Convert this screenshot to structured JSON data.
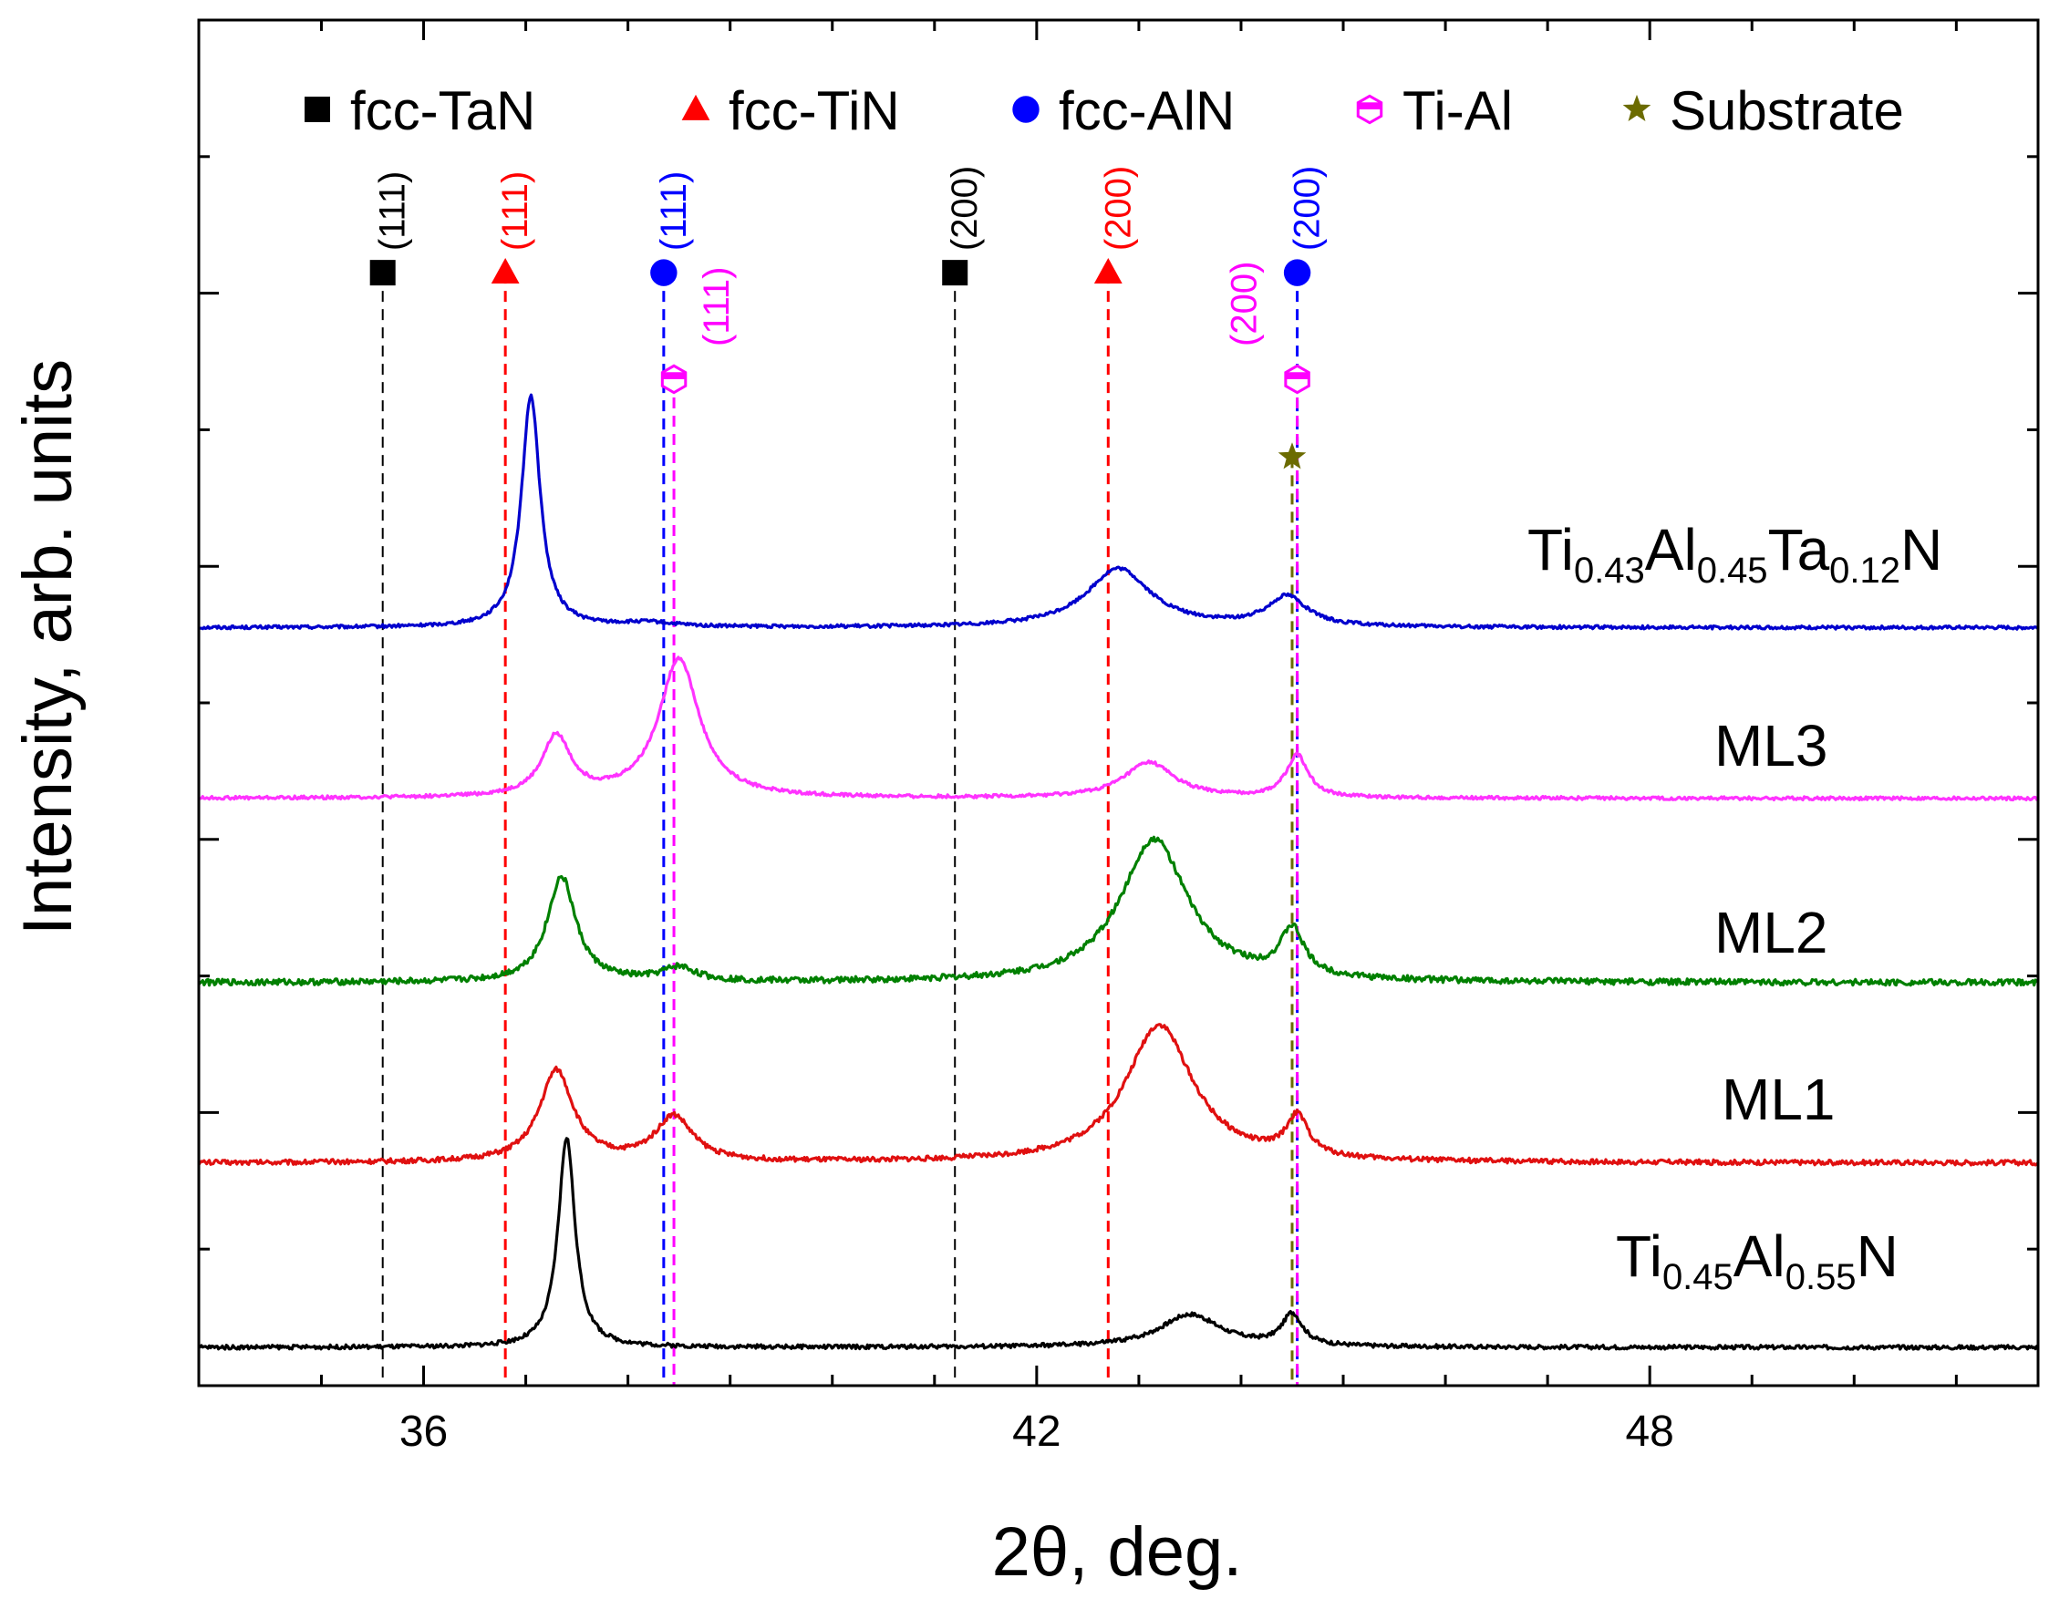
{
  "chart_data": {
    "type": "line",
    "title": "",
    "xlabel": "2θ, deg.",
    "ylabel": "Intensity, arb. units",
    "xlim": [
      33.8,
      51.8
    ],
    "ylim": [
      0,
      100
    ],
    "x_ticks": [
      36,
      42,
      48
    ],
    "x_minor_ticks": [
      35,
      37,
      38,
      39,
      40,
      41,
      43,
      44,
      45,
      46,
      47,
      49,
      50,
      51
    ],
    "y_ticks_unlabeled": true,
    "grid": false,
    "legend": {
      "placement": "top",
      "entries": [
        {
          "label": "fcc-TaN",
          "marker": "square",
          "color": "#000000"
        },
        {
          "label": "fcc-TiN",
          "marker": "triangle",
          "color": "#ff0000"
        },
        {
          "label": "fcc-AlN",
          "marker": "circle",
          "color": "#0000ff"
        },
        {
          "label": "Ti-Al",
          "marker": "hexagon",
          "color": "#ff00ff"
        },
        {
          "label": "Substrate",
          "marker": "star",
          "color": "#6b6b00"
        }
      ]
    },
    "reference_lines": [
      {
        "phase": "fcc-TaN",
        "x": 35.6,
        "hkl": "(111)",
        "color": "#000000",
        "marker": "square",
        "marker_y": 81.5
      },
      {
        "phase": "fcc-TiN",
        "x": 36.8,
        "hkl": "(111)",
        "color": "#ff0000",
        "marker": "triangle",
        "marker_y": 81.5
      },
      {
        "phase": "fcc-AlN",
        "x": 38.35,
        "hkl": "(111)",
        "color": "#0000ff",
        "marker": "circle",
        "marker_y": 81.5
      },
      {
        "phase": "Ti-Al",
        "x": 38.45,
        "hkl": "(111)",
        "color": "#ff00ff",
        "marker": "hexagon",
        "marker_y": 73.7
      },
      {
        "phase": "fcc-TaN",
        "x": 41.2,
        "hkl": "(200)",
        "color": "#000000",
        "marker": "square",
        "marker_y": 81.5
      },
      {
        "phase": "fcc-TiN",
        "x": 42.7,
        "hkl": "(200)",
        "color": "#ff0000",
        "marker": "triangle",
        "marker_y": 81.5
      },
      {
        "phase": "fcc-AlN",
        "x": 44.55,
        "hkl": "(200)",
        "color": "#0000ff",
        "marker": "circle",
        "marker_y": 81.5
      },
      {
        "phase": "Ti-Al",
        "x": 44.55,
        "hkl": "(200)",
        "color": "#ff00ff",
        "marker": "hexagon",
        "marker_y": 73.7
      },
      {
        "phase": "Substrate",
        "x": 44.5,
        "hkl": "",
        "color": "#6b6b00",
        "marker": "star",
        "marker_y": 68.0
      }
    ],
    "series": [
      {
        "name": "Ti0.43Al0.45Ta0.12N",
        "label_parts": [
          [
            "Ti",
            ""
          ],
          [
            "0.43",
            "sub"
          ],
          [
            "Al",
            ""
          ],
          [
            "0.45",
            "sub"
          ],
          [
            "Ta",
            ""
          ],
          [
            "0.12",
            "sub"
          ],
          [
            "N",
            ""
          ]
        ],
        "color": "#0000cd",
        "baseline": 55.5,
        "noise": 0.12,
        "peaks": [
          [
            37.05,
            17.0,
            0.11
          ],
          [
            38.2,
            0.3,
            0.3
          ],
          [
            42.8,
            4.3,
            0.38
          ],
          [
            44.45,
            2.2,
            0.23
          ]
        ]
      },
      {
        "name": "ML3",
        "color": "#ff33ff",
        "baseline": 43.0,
        "noise": 0.12,
        "peaks": [
          [
            37.3,
            4.4,
            0.17
          ],
          [
            38.5,
            10.2,
            0.24
          ],
          [
            43.1,
            2.6,
            0.3
          ],
          [
            44.55,
            3.1,
            0.13
          ]
        ]
      },
      {
        "name": "ML2",
        "color": "#008000",
        "baseline": 29.5,
        "noise": 0.22,
        "peaks": [
          [
            37.35,
            7.7,
            0.17
          ],
          [
            38.5,
            1.0,
            0.2
          ],
          [
            43.15,
            10.5,
            0.4
          ],
          [
            44.5,
            3.4,
            0.14
          ]
        ]
      },
      {
        "name": "ML1",
        "color": "#e01010",
        "baseline": 16.3,
        "noise": 0.18,
        "peaks": [
          [
            37.3,
            6.7,
            0.2
          ],
          [
            38.45,
            3.3,
            0.22
          ],
          [
            43.2,
            10.1,
            0.4
          ],
          [
            44.55,
            2.9,
            0.13
          ]
        ]
      },
      {
        "name": "Ti0.45Al0.55N",
        "label_parts": [
          [
            "Ti",
            ""
          ],
          [
            "0.45",
            "sub"
          ],
          [
            "Al",
            ""
          ],
          [
            "0.55",
            "sub"
          ],
          [
            "N",
            ""
          ]
        ],
        "color": "#000000",
        "baseline": 2.8,
        "noise": 0.15,
        "peaks": [
          [
            37.4,
            15.4,
            0.1
          ],
          [
            43.5,
            2.4,
            0.36
          ],
          [
            44.5,
            2.3,
            0.12
          ]
        ]
      }
    ]
  }
}
